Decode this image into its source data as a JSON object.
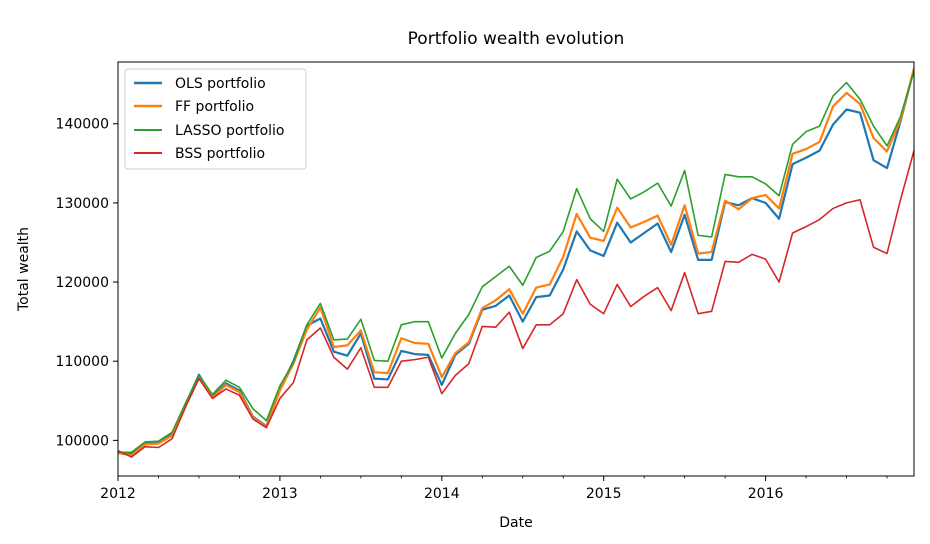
{
  "chart_data": {
    "type": "line",
    "title": "Portfolio wealth evolution",
    "xlabel": "Date",
    "ylabel": "Total wealth",
    "x_axis": {
      "type": "date",
      "range": [
        "2012-01-01",
        "2016-12-01"
      ],
      "ticks": [
        {
          "value": "2012-01-01",
          "label": "2012"
        },
        {
          "value": "2013-01-01",
          "label": "2013"
        },
        {
          "value": "2014-01-01",
          "label": "2014"
        },
        {
          "value": "2015-01-01",
          "label": "2015"
        },
        {
          "value": "2016-01-01",
          "label": "2016"
        }
      ]
    },
    "y_axis": {
      "range": [
        95500,
        147800
      ],
      "ticks": [
        {
          "value": 100000,
          "label": "100000"
        },
        {
          "value": 110000,
          "label": "110000"
        },
        {
          "value": 120000,
          "label": "120000"
        },
        {
          "value": 130000,
          "label": "130000"
        },
        {
          "value": 140000,
          "label": "140000"
        }
      ]
    },
    "grid": false,
    "legend_position": "top-left",
    "x": [
      "2012-01",
      "2012-02",
      "2012-03",
      "2012-04",
      "2012-05",
      "2012-06",
      "2012-07",
      "2012-08",
      "2012-09",
      "2012-10",
      "2012-11",
      "2012-12",
      "2013-01",
      "2013-02",
      "2013-03",
      "2013-04",
      "2013-05",
      "2013-06",
      "2013-07",
      "2013-08",
      "2013-09",
      "2013-10",
      "2013-11",
      "2013-12",
      "2014-01",
      "2014-02",
      "2014-03",
      "2014-04",
      "2014-05",
      "2014-06",
      "2014-07",
      "2014-08",
      "2014-09",
      "2014-10",
      "2014-11",
      "2014-12",
      "2015-01",
      "2015-02",
      "2015-03",
      "2015-04",
      "2015-05",
      "2015-06",
      "2015-07",
      "2015-08",
      "2015-09",
      "2015-10",
      "2015-11",
      "2015-12",
      "2016-01",
      "2016-02",
      "2016-03",
      "2016-04",
      "2016-05",
      "2016-06",
      "2016-07",
      "2016-08",
      "2016-09",
      "2016-10",
      "2016-11",
      "2016-12"
    ],
    "series": [
      {
        "name": "OLS portfolio",
        "color": "#1f77b4",
        "width": 2.2,
        "values": [
          98500,
          98300,
          99700,
          99800,
          100800,
          104500,
          108300,
          105500,
          107200,
          106300,
          103000,
          101800,
          106500,
          110000,
          114500,
          115400,
          111200,
          110700,
          113500,
          107800,
          107700,
          111300,
          110900,
          110800,
          107000,
          110800,
          112200,
          116500,
          117000,
          118300,
          115000,
          118100,
          118300,
          121600,
          126400,
          124000,
          123300,
          127500,
          125000,
          126200,
          127400,
          123800,
          128500,
          122800,
          122800,
          130100,
          129700,
          130600,
          130000,
          128000,
          134900,
          135700,
          136600,
          139900,
          141800,
          141400,
          135400,
          134400,
          140300,
          146900
        ]
      },
      {
        "name": "FF portfolio",
        "color": "#ff7f0e",
        "width": 2.2,
        "values": [
          98400,
          98100,
          99500,
          99600,
          100600,
          104300,
          108100,
          105400,
          107000,
          106100,
          102900,
          101700,
          106300,
          109700,
          114000,
          116800,
          111800,
          112000,
          113900,
          108600,
          108500,
          112900,
          112300,
          112200,
          108000,
          111000,
          112400,
          116700,
          117700,
          119100,
          116000,
          119300,
          119700,
          123200,
          128600,
          125600,
          125200,
          129400,
          126900,
          127600,
          128400,
          124700,
          129700,
          123600,
          123800,
          130300,
          129200,
          130600,
          131000,
          129300,
          136200,
          136800,
          137700,
          142200,
          143900,
          142500,
          138200,
          136500,
          140500,
          147000
        ]
      },
      {
        "name": "LASSO portfolio",
        "color": "#2ca02c",
        "width": 1.6,
        "values": [
          98500,
          98500,
          99800,
          99900,
          101000,
          104700,
          108200,
          105800,
          107600,
          106700,
          104000,
          102500,
          106900,
          109800,
          114600,
          117300,
          112700,
          112800,
          115300,
          110100,
          110000,
          114600,
          115000,
          115000,
          110400,
          113500,
          115900,
          119400,
          120700,
          122000,
          119600,
          123100,
          123900,
          126400,
          131800,
          128000,
          126400,
          133000,
          130500,
          131400,
          132500,
          129600,
          134100,
          125900,
          125700,
          133600,
          133300,
          133300,
          132400,
          130900,
          137400,
          139000,
          139700,
          143500,
          145200,
          143100,
          139700,
          137200,
          140900,
          146700
        ]
      },
      {
        "name": "BSS portfolio",
        "color": "#d62728",
        "width": 1.6,
        "values": [
          98700,
          97900,
          99200,
          99100,
          100200,
          104200,
          107800,
          105300,
          106500,
          105700,
          102700,
          101600,
          105300,
          107300,
          112700,
          114200,
          110500,
          109000,
          111700,
          106700,
          106700,
          110000,
          110200,
          110500,
          105900,
          108200,
          109700,
          114400,
          114300,
          116200,
          111600,
          114600,
          114600,
          116000,
          120300,
          117200,
          116000,
          119700,
          116900,
          118200,
          119300,
          116400,
          121200,
          116000,
          116300,
          122600,
          122500,
          123500,
          122900,
          120000,
          126200,
          127000,
          127900,
          129300,
          130000,
          130400,
          124400,
          123600,
          130400,
          136600
        ]
      }
    ]
  }
}
